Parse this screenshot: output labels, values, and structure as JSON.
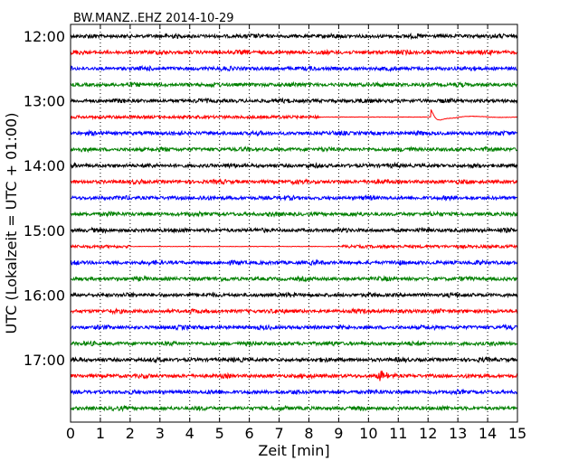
{
  "chart_data": {
    "type": "line",
    "title": "BW.MANZ..EHZ 2014-10-29",
    "xlabel": "Zeit  [min]",
    "ylabel": "UTC (Lokalzeit = UTC + 01:00)",
    "xlim": [
      0,
      15
    ],
    "x_ticks": [
      "0",
      "1",
      "2",
      "3",
      "4",
      "5",
      "6",
      "7",
      "8",
      "9",
      "10",
      "11",
      "12",
      "13",
      "14",
      "15"
    ],
    "y_ticks": [
      "12:00",
      "13:00",
      "14:00",
      "15:00",
      "16:00",
      "17:00"
    ],
    "grid": "vertical dotted at each minute",
    "trace_colors": [
      "#000000",
      "#ff0000",
      "#0000ff",
      "#008000"
    ],
    "traces_start": "12:00",
    "trace_interval_min": 15,
    "trace_count": 24,
    "events": [
      {
        "trace_start": "13:15",
        "minute": 12.1,
        "kind": "large signal"
      },
      {
        "trace_start": "17:15",
        "minute": 10.4,
        "kind": "spike"
      }
    ]
  }
}
